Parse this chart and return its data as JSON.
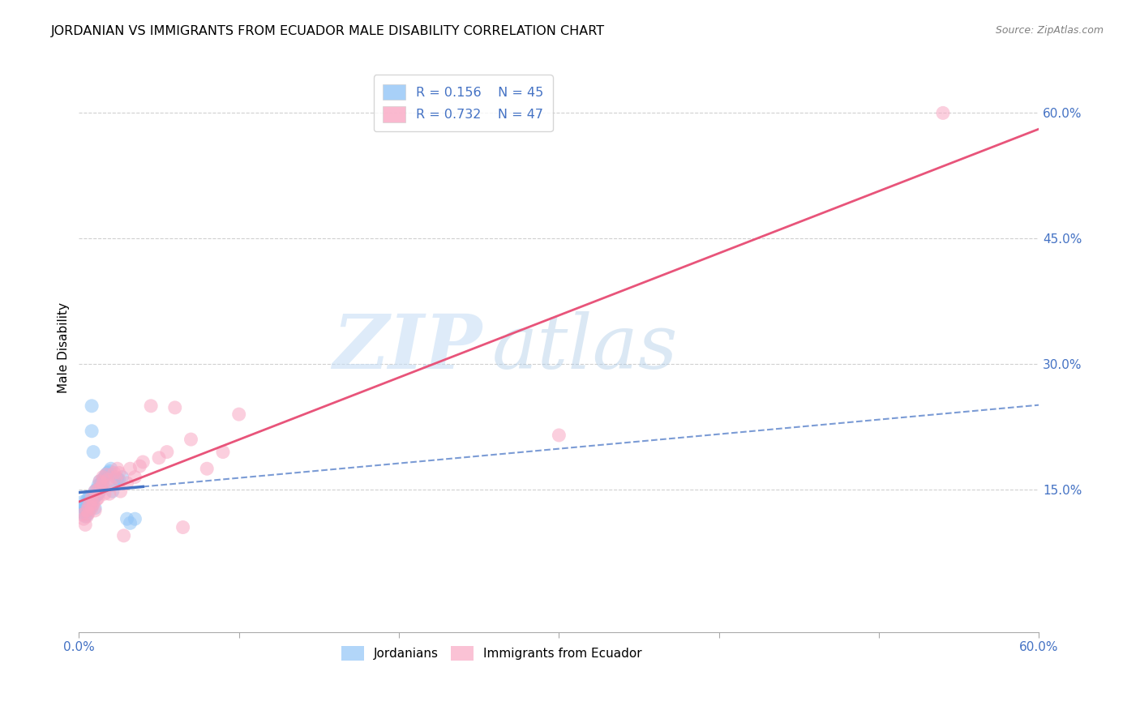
{
  "title": "JORDANIAN VS IMMIGRANTS FROM ECUADOR MALE DISABILITY CORRELATION CHART",
  "source": "Source: ZipAtlas.com",
  "ylabel": "Male Disability",
  "xlim": [
    0.0,
    0.6
  ],
  "ylim": [
    -0.02,
    0.66
  ],
  "xticks": [
    0.0,
    0.1,
    0.2,
    0.3,
    0.4,
    0.5,
    0.6
  ],
  "xticklabels_shown": [
    "0.0%",
    "60.0%"
  ],
  "xticklabels_pos": [
    0.0,
    0.6
  ],
  "right_yticks": [
    0.15,
    0.3,
    0.45,
    0.6
  ],
  "right_yticklabels": [
    "15.0%",
    "30.0%",
    "45.0%",
    "60.0%"
  ],
  "legend_r1": "R = 0.156",
  "legend_n1": "N = 45",
  "legend_r2": "R = 0.732",
  "legend_n2": "N = 47",
  "blue_color": "#92C5F7",
  "pink_color": "#F9A8C4",
  "blue_line_color": "#4472C4",
  "pink_line_color": "#E8547A",
  "watermark_zip": "ZIP",
  "watermark_atlas": "atlas",
  "jordanians_x": [
    0.002,
    0.003,
    0.003,
    0.004,
    0.004,
    0.004,
    0.005,
    0.005,
    0.005,
    0.006,
    0.006,
    0.006,
    0.007,
    0.007,
    0.008,
    0.008,
    0.008,
    0.009,
    0.009,
    0.01,
    0.01,
    0.01,
    0.011,
    0.011,
    0.012,
    0.012,
    0.013,
    0.013,
    0.014,
    0.014,
    0.015,
    0.015,
    0.016,
    0.017,
    0.018,
    0.019,
    0.02,
    0.021,
    0.022,
    0.024,
    0.025,
    0.027,
    0.03,
    0.032,
    0.035
  ],
  "jordanians_y": [
    0.135,
    0.128,
    0.122,
    0.13,
    0.127,
    0.118,
    0.138,
    0.133,
    0.12,
    0.14,
    0.136,
    0.125,
    0.142,
    0.135,
    0.25,
    0.22,
    0.13,
    0.195,
    0.138,
    0.148,
    0.142,
    0.128,
    0.15,
    0.143,
    0.155,
    0.145,
    0.16,
    0.148,
    0.158,
    0.152,
    0.162,
    0.155,
    0.165,
    0.168,
    0.17,
    0.172,
    0.175,
    0.148,
    0.16,
    0.163,
    0.162,
    0.165,
    0.115,
    0.11,
    0.115
  ],
  "ecuador_x": [
    0.002,
    0.003,
    0.004,
    0.005,
    0.005,
    0.006,
    0.006,
    0.007,
    0.008,
    0.008,
    0.009,
    0.01,
    0.01,
    0.011,
    0.012,
    0.012,
    0.013,
    0.014,
    0.015,
    0.015,
    0.016,
    0.017,
    0.018,
    0.019,
    0.02,
    0.022,
    0.023,
    0.024,
    0.025,
    0.026,
    0.028,
    0.03,
    0.032,
    0.035,
    0.038,
    0.04,
    0.045,
    0.05,
    0.055,
    0.06,
    0.065,
    0.07,
    0.08,
    0.09,
    0.1,
    0.3,
    0.54
  ],
  "ecuador_y": [
    0.12,
    0.115,
    0.108,
    0.125,
    0.118,
    0.13,
    0.122,
    0.132,
    0.14,
    0.128,
    0.133,
    0.148,
    0.125,
    0.138,
    0.15,
    0.14,
    0.16,
    0.153,
    0.165,
    0.158,
    0.145,
    0.168,
    0.162,
    0.145,
    0.155,
    0.17,
    0.165,
    0.175,
    0.17,
    0.148,
    0.095,
    0.158,
    0.175,
    0.165,
    0.178,
    0.183,
    0.25,
    0.188,
    0.195,
    0.248,
    0.105,
    0.21,
    0.175,
    0.195,
    0.24,
    0.215,
    0.6
  ]
}
